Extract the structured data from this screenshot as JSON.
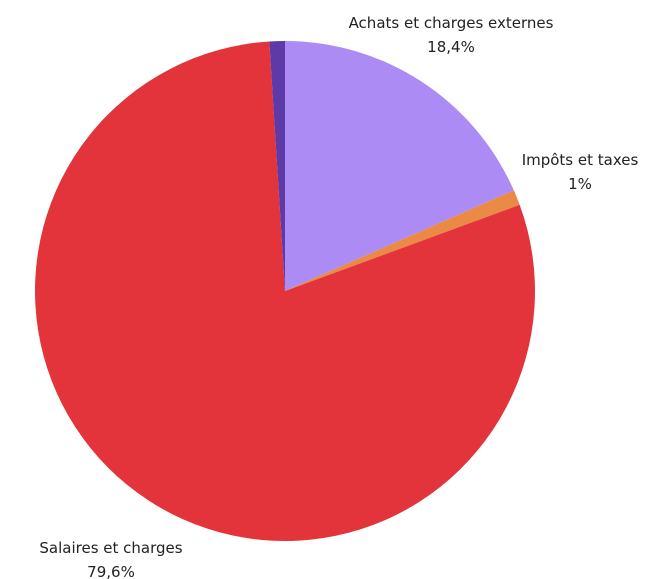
{
  "chart_data": {
    "type": "pie",
    "title": "",
    "slices": [
      {
        "label": "Achats et charges externes",
        "value": 18.4,
        "display": "18,4%",
        "color": "#ad8bf5"
      },
      {
        "label": "Impôts et taxes",
        "value": 1.0,
        "display": "1%",
        "color": "#ea8a45"
      },
      {
        "label": "Salaires et charges",
        "value": 79.6,
        "display": "79,6%",
        "color": "#e3343b"
      },
      {
        "label": "",
        "value": 1.0,
        "display": "",
        "color": "#5d3aa8"
      }
    ]
  }
}
